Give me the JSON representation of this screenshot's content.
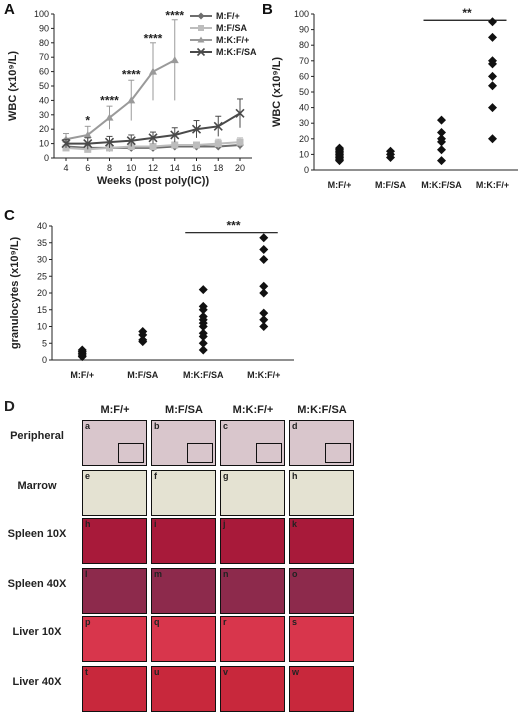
{
  "panel_letters": {
    "a": "A",
    "b": "B",
    "c": "C",
    "d": "D"
  },
  "chart_data": [
    {
      "type": "line",
      "panel": "A",
      "ylabel": "WBC (x10⁹/L)",
      "xlabel": "Weeks (post poly(IC))",
      "x": [
        4,
        6,
        8,
        10,
        12,
        14,
        16,
        18,
        20
      ],
      "ylim": [
        0,
        100
      ],
      "yticks": [
        0,
        10,
        20,
        30,
        40,
        50,
        60,
        70,
        80,
        90,
        100
      ],
      "legend_position": "top-right",
      "series": [
        {
          "name": "M:F/+",
          "color": "#6e6e6e",
          "marker": "diamond",
          "values": [
            8,
            7,
            7,
            7,
            7,
            8,
            8,
            8,
            9
          ],
          "err": [
            3,
            2,
            2,
            2,
            2,
            2,
            2,
            2,
            3
          ]
        },
        {
          "name": "M:F/SA",
          "color": "#bdbdbd",
          "marker": "square",
          "values": [
            7,
            6,
            7,
            8,
            8,
            9,
            9,
            10,
            11
          ],
          "err": [
            2,
            2,
            2,
            2,
            2,
            2,
            2,
            3,
            3
          ]
        },
        {
          "name": "M:K:F/+",
          "color": "#9a9a9a",
          "marker": "triangle",
          "values": [
            13,
            16,
            28,
            40,
            60,
            68,
            null,
            null,
            null
          ],
          "err": [
            4,
            6,
            8,
            14,
            20,
            28,
            null,
            null,
            null
          ]
        },
        {
          "name": "M:K:F/SA",
          "color": "#4a4a4a",
          "marker": "x",
          "values": [
            10,
            10,
            11,
            12,
            14,
            16,
            20,
            22,
            31
          ],
          "err": [
            3,
            4,
            4,
            4,
            4,
            5,
            6,
            7,
            10
          ]
        }
      ],
      "annotations": [
        {
          "x": 6,
          "text": "*",
          "y": 26
        },
        {
          "x": 8,
          "text": "****",
          "y": 40
        },
        {
          "x": 10,
          "text": "****",
          "y": 58
        },
        {
          "x": 12,
          "text": "****",
          "y": 83
        },
        {
          "x": 14,
          "text": "****",
          "y": 99
        }
      ]
    },
    {
      "type": "scatter",
      "panel": "B",
      "ylabel": "WBC (x10⁹/L)",
      "categories": [
        "M:F/+",
        "M:F/SA",
        "M:K:F/SA",
        "M:K:F/+"
      ],
      "ylim": [
        0,
        100
      ],
      "yticks": [
        0,
        10,
        20,
        30,
        40,
        50,
        60,
        70,
        80,
        90,
        100
      ],
      "points": [
        [
          14,
          13,
          12,
          11,
          10,
          9,
          8,
          7,
          6
        ],
        [
          12,
          10,
          8
        ],
        [
          32,
          24,
          20,
          18,
          13,
          6
        ],
        [
          95,
          85,
          70,
          68,
          60,
          54,
          40,
          20
        ]
      ],
      "sig": {
        "text": "**",
        "from": 2,
        "to": 3,
        "y": 96
      }
    },
    {
      "type": "scatter",
      "panel": "C",
      "ylabel": "granulocytes (x10⁹/L)",
      "categories": [
        "M:F/+",
        "M:F/SA",
        "M:K:F/SA",
        "M:K:F/+"
      ],
      "ylim": [
        0,
        40
      ],
      "yticks": [
        0,
        5,
        10,
        15,
        20,
        25,
        30,
        35,
        40
      ],
      "points": [
        [
          3,
          2.5,
          2,
          1.5,
          1
        ],
        [
          8.5,
          7.5,
          6,
          5.5
        ],
        [
          21,
          16,
          15,
          13,
          12,
          11,
          10,
          8,
          7,
          5,
          3
        ],
        [
          36.5,
          33,
          30,
          22,
          20,
          14,
          12,
          10
        ]
      ],
      "sig": {
        "text": "***",
        "from": 2,
        "to": 3,
        "y": 38
      }
    }
  ],
  "histology": {
    "columns": [
      "M:F/+",
      "M:F/SA",
      "M:K:F/+",
      "M:K:F/SA"
    ],
    "rows": [
      {
        "label": "Peripheral",
        "letters": [
          "a",
          "b",
          "c",
          "d"
        ],
        "color": "#d9c6cc",
        "inset": true
      },
      {
        "label": "Marrow",
        "letters": [
          "e",
          "f",
          "g",
          "h"
        ],
        "color": "#e4e2d2",
        "inset": false
      },
      {
        "label": "Spleen 10X",
        "letters": [
          "h",
          "i",
          "j",
          "k"
        ],
        "color": "#a81a3a",
        "inset": false
      },
      {
        "label": "Spleen 40X",
        "letters": [
          "l",
          "m",
          "n",
          "o"
        ],
        "color": "#8d2a4c",
        "inset": false
      },
      {
        "label": "Liver 10X",
        "letters": [
          "p",
          "q",
          "r",
          "s"
        ],
        "color": "#d8364c",
        "inset": false
      },
      {
        "label": "Liver 40X",
        "letters": [
          "t",
          "u",
          "v",
          "w"
        ],
        "color": "#c8283c",
        "inset": false
      }
    ]
  }
}
